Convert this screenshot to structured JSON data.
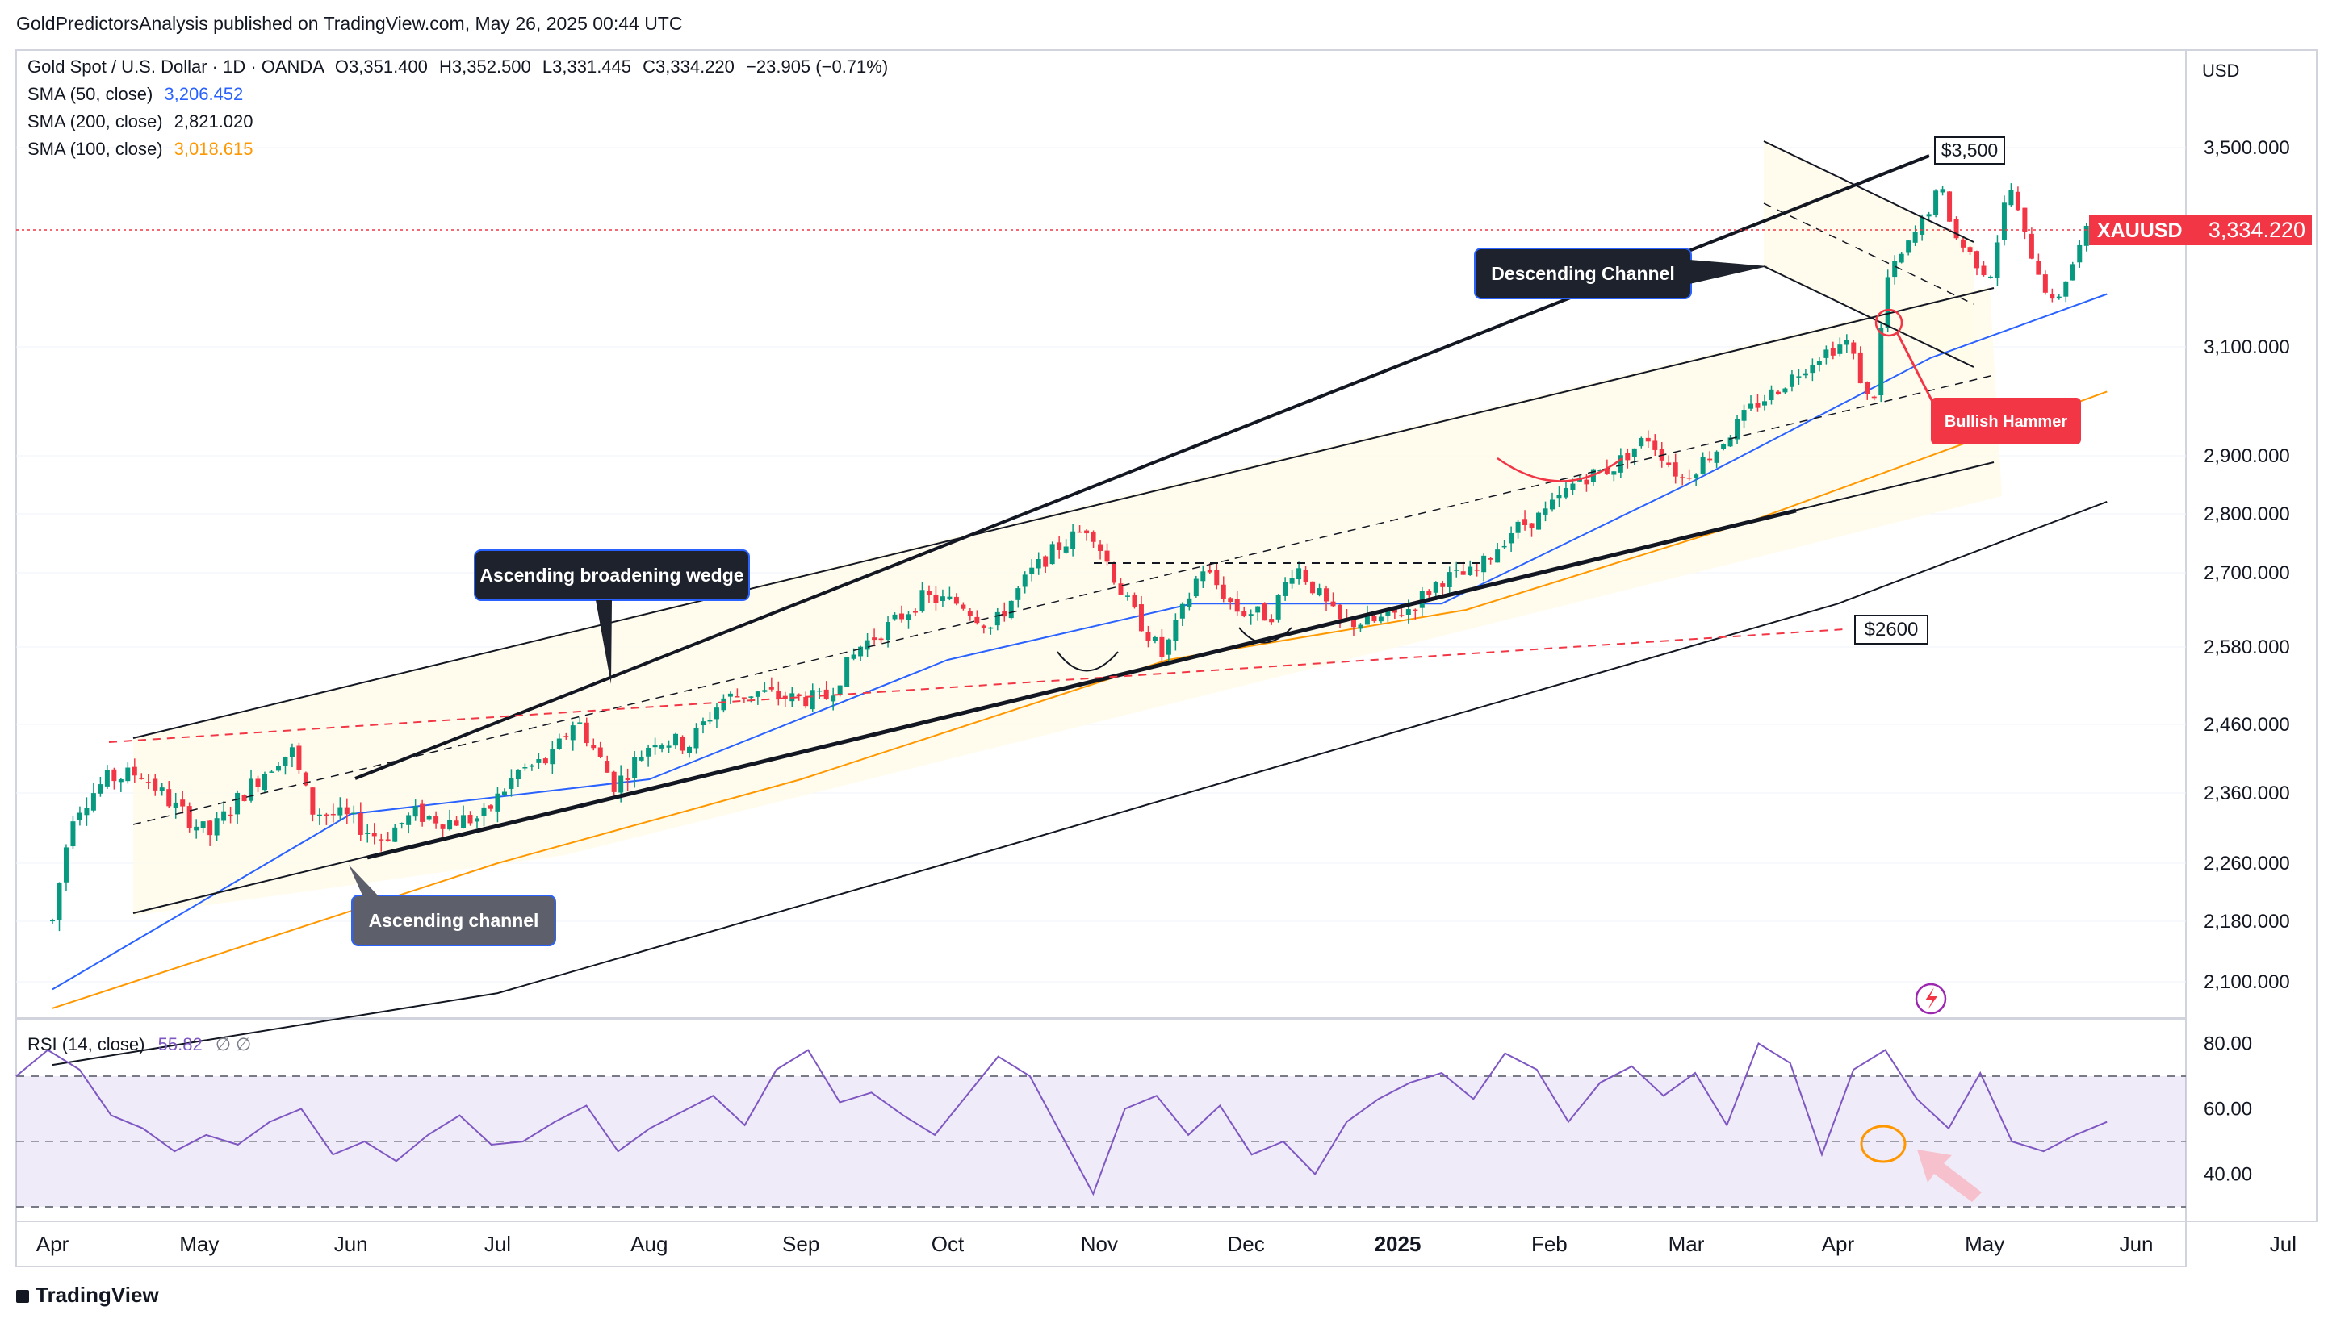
{
  "publisher_line": "GoldPredictorsAnalysis published on TradingView.com, May 26, 2025 00:44 UTC",
  "footer_brand": "TradingView",
  "symbol": {
    "title": "Gold Spot / U.S. Dollar · 1D · OANDA",
    "open": "O3,351.400",
    "high": "H3,352.500",
    "low": "L3,331.445",
    "close": "C3,334.220",
    "change": "−23.905 (−0.71%)",
    "ticker": "XAUUSD",
    "last_price": "3,334.220",
    "currency": "USD"
  },
  "indicators": [
    {
      "label": "SMA (50, close)",
      "value": "3,206.452",
      "color": "#2962ff"
    },
    {
      "label": "SMA (200, close)",
      "value": "2,821.020",
      "color": "#131722"
    },
    {
      "label": "SMA (100, close)",
      "value": "3,018.615",
      "color": "#ff9800"
    }
  ],
  "rsi": {
    "label": "RSI (14, close)",
    "value": "55.82",
    "extra": "∅ ∅",
    "color": "#7e57c2",
    "band_top": 70,
    "band_bottom": 30,
    "mid": 50
  },
  "annotations": {
    "wedge": "Ascending broadening wedge",
    "channel": "Ascending channel",
    "descending": "Descending Channel",
    "hammer": "Bullish Hammer",
    "level_3500": "$3,500",
    "level_2600": "$2600"
  },
  "colors": {
    "up": "#089981",
    "down": "#f23645",
    "accent": "#f23645",
    "grid": "#f0f3fa"
  },
  "chart_data": {
    "type": "candlestick",
    "y_axis_ticks": [
      "3,500.000",
      "3,100.000",
      "2,900.000",
      "2,800.000",
      "2,700.000",
      "2,580.000",
      "2,460.000",
      "2,360.000",
      "2,260.000",
      "2,180.000",
      "2,100.000"
    ],
    "y_axis_values": [
      3500,
      3100,
      2900,
      2800,
      2700,
      2580,
      2460,
      2360,
      2260,
      2180,
      2100
    ],
    "rsi_ticks": [
      "80.00",
      "60.00",
      "40.00"
    ],
    "x_ticks": [
      "Apr",
      "May",
      "Jun",
      "Jul",
      "Aug",
      "Sep",
      "Oct",
      "Nov",
      "Dec",
      "2025",
      "Feb",
      "Mar",
      "Apr",
      "May",
      "Jun",
      "Jul"
    ],
    "close_path": [
      [
        "2024-04-01",
        2180
      ],
      [
        "2024-04-05",
        2330
      ],
      [
        "2024-04-12",
        2380
      ],
      [
        "2024-04-19",
        2390
      ],
      [
        "2024-04-26",
        2340
      ],
      [
        "2024-05-03",
        2300
      ],
      [
        "2024-05-10",
        2360
      ],
      [
        "2024-05-17",
        2410
      ],
      [
        "2024-05-20",
        2420
      ],
      [
        "2024-05-24",
        2335
      ],
      [
        "2024-05-31",
        2325
      ],
      [
        "2024-06-07",
        2295
      ],
      [
        "2024-06-14",
        2330
      ],
      [
        "2024-06-21",
        2320
      ],
      [
        "2024-06-28",
        2325
      ],
      [
        "2024-07-05",
        2390
      ],
      [
        "2024-07-12",
        2410
      ],
      [
        "2024-07-17",
        2470
      ],
      [
        "2024-07-25",
        2370
      ],
      [
        "2024-08-02",
        2440
      ],
      [
        "2024-08-09",
        2430
      ],
      [
        "2024-08-16",
        2500
      ],
      [
        "2024-08-23",
        2510
      ],
      [
        "2024-08-30",
        2500
      ],
      [
        "2024-09-06",
        2500
      ],
      [
        "2024-09-13",
        2580
      ],
      [
        "2024-09-20",
        2620
      ],
      [
        "2024-09-26",
        2660
      ],
      [
        "2024-10-04",
        2650
      ],
      [
        "2024-10-10",
        2610
      ],
      [
        "2024-10-18",
        2700
      ],
      [
        "2024-10-23",
        2740
      ],
      [
        "2024-10-30",
        2780
      ],
      [
        "2024-11-06",
        2660
      ],
      [
        "2024-11-14",
        2565
      ],
      [
        "2024-11-22",
        2710
      ],
      [
        "2024-11-29",
        2640
      ],
      [
        "2024-12-06",
        2630
      ],
      [
        "2024-12-11",
        2715
      ],
      [
        "2024-12-20",
        2620
      ],
      [
        "2024-12-27",
        2620
      ],
      [
        "2025-01-03",
        2640
      ],
      [
        "2025-01-10",
        2690
      ],
      [
        "2025-01-17",
        2700
      ],
      [
        "2025-01-24",
        2770
      ],
      [
        "2025-01-31",
        2800
      ],
      [
        "2025-02-07",
        2860
      ],
      [
        "2025-02-14",
        2880
      ],
      [
        "2025-02-21",
        2935
      ],
      [
        "2025-02-28",
        2860
      ],
      [
        "2025-03-07",
        2910
      ],
      [
        "2025-03-14",
        2985
      ],
      [
        "2025-03-20",
        3025
      ],
      [
        "2025-03-28",
        3085
      ],
      [
        "2025-04-03",
        3110
      ],
      [
        "2025-04-08",
        2980
      ],
      [
        "2025-04-11",
        3235
      ],
      [
        "2025-04-17",
        3330
      ],
      [
        "2025-04-22",
        3420
      ],
      [
        "2025-04-25",
        3320
      ],
      [
        "2025-05-02",
        3240
      ],
      [
        "2025-05-06",
        3430
      ],
      [
        "2025-05-09",
        3325
      ],
      [
        "2025-05-15",
        3180
      ],
      [
        "2025-05-20",
        3290
      ],
      [
        "2025-05-23",
        3357
      ],
      [
        "2025-05-26",
        3334
      ]
    ],
    "sma50": [
      [
        "2024-04-01",
        2090
      ],
      [
        "2024-06-01",
        2330
      ],
      [
        "2024-08-01",
        2380
      ],
      [
        "2024-10-01",
        2560
      ],
      [
        "2024-11-20",
        2650
      ],
      [
        "2025-01-10",
        2650
      ],
      [
        "2025-03-01",
        2850
      ],
      [
        "2025-04-20",
        3080
      ],
      [
        "2025-05-26",
        3206
      ]
    ],
    "sma100": [
      [
        "2024-04-01",
        2065
      ],
      [
        "2024-07-01",
        2260
      ],
      [
        "2024-09-01",
        2380
      ],
      [
        "2024-11-15",
        2560
      ],
      [
        "2025-01-15",
        2640
      ],
      [
        "2025-03-15",
        2790
      ],
      [
        "2025-05-26",
        3018
      ]
    ],
    "sma200": [
      [
        "2024-04-01",
        1990
      ],
      [
        "2024-07-01",
        2085
      ],
      [
        "2024-10-01",
        2260
      ],
      [
        "2025-01-01",
        2450
      ],
      [
        "2025-04-01",
        2650
      ],
      [
        "2025-05-26",
        2821
      ]
    ],
    "rsi_path": [
      70,
      78,
      72,
      58,
      54,
      47,
      52,
      49,
      56,
      60,
      46,
      50,
      44,
      52,
      58,
      49,
      50,
      56,
      61,
      47,
      54,
      59,
      64,
      55,
      72,
      78,
      62,
      65,
      58,
      52,
      64,
      76,
      70,
      52,
      34,
      60,
      64,
      52,
      61,
      46,
      50,
      40,
      56,
      63,
      68,
      71,
      63,
      77,
      72,
      56,
      68,
      73,
      64,
      71,
      55,
      80,
      74,
      46,
      72,
      78,
      63,
      54,
      71,
      50,
      47,
      52,
      56
    ]
  }
}
